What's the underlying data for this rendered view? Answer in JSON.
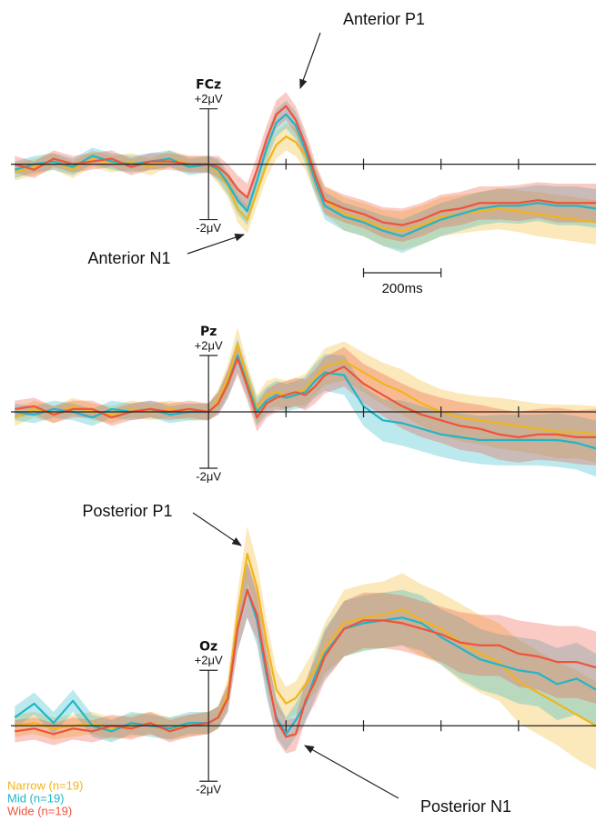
{
  "chart_data": [
    {
      "type": "line",
      "title": "FCz",
      "x": [
        -500,
        -450,
        -400,
        -350,
        -300,
        -250,
        -200,
        -150,
        -100,
        -50,
        0,
        25,
        50,
        75,
        100,
        125,
        150,
        175,
        200,
        225,
        250,
        275,
        300,
        350,
        400,
        450,
        500,
        550,
        600,
        650,
        700,
        750,
        800,
        850,
        900,
        950,
        1000
      ],
      "xlim": [
        -510,
        1000
      ],
      "xticks": [
        200,
        400,
        600,
        800
      ],
      "ylim": [
        -3,
        3.5
      ],
      "yticks": [
        {
          "value": 2,
          "label": "+2μV"
        },
        {
          "value": -2,
          "label": "-2μV"
        }
      ],
      "annotations": [
        "Anterior P1",
        "Anterior N1"
      ],
      "scale_bar": {
        "value": 200,
        "label": "200ms"
      },
      "series": [
        {
          "color": "#f2b41e",
          "values": [
            -0.3,
            -0.1,
            0.1,
            -0.2,
            0.2,
            0.0,
            0.1,
            -0.1,
            0.2,
            0.0,
            0.0,
            -0.3,
            -0.8,
            -1.6,
            -2.0,
            -1.0,
            0.0,
            0.7,
            1.0,
            0.8,
            0.3,
            -0.6,
            -1.3,
            -1.8,
            -2.0,
            -2.3,
            -2.4,
            -2.2,
            -1.9,
            -1.8,
            -1.7,
            -1.6,
            -1.7,
            -1.8,
            -1.9,
            -2.0,
            -2.1
          ],
          "errors": [
            0.3,
            0.3,
            0.3,
            0.3,
            0.3,
            0.3,
            0.3,
            0.3,
            0.3,
            0.3,
            0.3,
            0.4,
            0.4,
            0.5,
            0.5,
            0.5,
            0.5,
            0.5,
            0.5,
            0.5,
            0.5,
            0.5,
            0.5,
            0.6,
            0.6,
            0.65,
            0.7,
            0.7,
            0.7,
            0.7,
            0.7,
            0.75,
            0.75,
            0.8,
            0.8,
            0.8,
            0.8
          ]
        },
        {
          "color": "#22b5c8",
          "values": [
            -0.2,
            0.0,
            0.1,
            -0.1,
            0.3,
            0.1,
            0.0,
            0.1,
            0.2,
            -0.1,
            0.0,
            -0.2,
            -0.7,
            -1.3,
            -1.7,
            -0.6,
            0.6,
            1.5,
            1.8,
            1.4,
            0.5,
            -0.6,
            -1.5,
            -1.9,
            -2.1,
            -2.4,
            -2.6,
            -2.3,
            -2.0,
            -1.8,
            -1.6,
            -1.5,
            -1.5,
            -1.4,
            -1.5,
            -1.5,
            -1.6
          ],
          "errors": [
            0.3,
            0.3,
            0.3,
            0.3,
            0.3,
            0.3,
            0.3,
            0.3,
            0.3,
            0.3,
            0.3,
            0.4,
            0.4,
            0.5,
            0.5,
            0.5,
            0.5,
            0.5,
            0.5,
            0.5,
            0.5,
            0.5,
            0.5,
            0.5,
            0.5,
            0.55,
            0.6,
            0.6,
            0.6,
            0.6,
            0.6,
            0.6,
            0.65,
            0.65,
            0.7,
            0.7,
            0.7
          ]
        },
        {
          "color": "#f0533a",
          "values": [
            0.0,
            -0.2,
            0.2,
            0.0,
            0.1,
            0.2,
            -0.1,
            0.1,
            0.1,
            0.0,
            0.0,
            -0.1,
            -0.4,
            -0.9,
            -1.2,
            -0.2,
            0.9,
            1.8,
            2.1,
            1.6,
            0.7,
            -0.4,
            -1.3,
            -1.6,
            -1.8,
            -2.1,
            -2.2,
            -2.0,
            -1.7,
            -1.6,
            -1.4,
            -1.4,
            -1.4,
            -1.3,
            -1.4,
            -1.4,
            -1.4
          ],
          "errors": [
            0.3,
            0.3,
            0.3,
            0.3,
            0.3,
            0.3,
            0.3,
            0.3,
            0.3,
            0.3,
            0.3,
            0.4,
            0.4,
            0.5,
            0.5,
            0.5,
            0.5,
            0.5,
            0.5,
            0.5,
            0.5,
            0.5,
            0.5,
            0.5,
            0.5,
            0.55,
            0.6,
            0.6,
            0.6,
            0.6,
            0.6,
            0.6,
            0.65,
            0.65,
            0.7,
            0.7,
            0.7
          ]
        }
      ]
    },
    {
      "type": "line",
      "title": "Pz",
      "x": [
        -500,
        -450,
        -400,
        -350,
        -300,
        -250,
        -200,
        -150,
        -100,
        -50,
        0,
        25,
        50,
        75,
        100,
        125,
        150,
        175,
        200,
        225,
        250,
        275,
        300,
        350,
        400,
        450,
        500,
        550,
        600,
        650,
        700,
        750,
        800,
        850,
        900,
        950,
        1000
      ],
      "xlim": [
        -510,
        1000
      ],
      "xticks": [
        200,
        400,
        600,
        800
      ],
      "ylim": [
        -3,
        3
      ],
      "yticks": [
        {
          "value": 2,
          "label": "+2μV"
        },
        {
          "value": -2,
          "label": "-2μV"
        }
      ],
      "series": [
        {
          "color": "#f2b41e",
          "values": [
            -0.2,
            0.1,
            -0.1,
            0.2,
            0.0,
            -0.1,
            0.1,
            0.0,
            0.1,
            0.0,
            0.0,
            0.4,
            1.2,
            2.4,
            1.2,
            0.1,
            0.6,
            0.7,
            0.6,
            0.7,
            0.8,
            1.2,
            1.6,
            1.8,
            1.4,
            1.0,
            0.7,
            0.3,
            0.0,
            -0.2,
            -0.3,
            -0.4,
            -0.5,
            -0.6,
            -0.7,
            -0.7,
            -0.8
          ],
          "errors": [
            0.3,
            0.3,
            0.3,
            0.3,
            0.3,
            0.3,
            0.3,
            0.3,
            0.3,
            0.3,
            0.3,
            0.4,
            0.5,
            0.6,
            0.5,
            0.5,
            0.5,
            0.5,
            0.5,
            0.5,
            0.55,
            0.6,
            0.65,
            0.7,
            0.7,
            0.75,
            0.8,
            0.8,
            0.8,
            0.85,
            0.85,
            0.9,
            0.9,
            0.9,
            0.95,
            0.95,
            1.0
          ]
        },
        {
          "color": "#22b5c8",
          "values": [
            0.0,
            -0.1,
            0.1,
            0.0,
            -0.2,
            0.1,
            0.0,
            0.1,
            -0.1,
            0.0,
            0.0,
            0.3,
            1.0,
            2.0,
            1.0,
            0.0,
            0.4,
            0.6,
            0.5,
            0.6,
            0.7,
            1.1,
            1.4,
            1.3,
            0.2,
            -0.3,
            -0.4,
            -0.6,
            -0.8,
            -0.9,
            -1.0,
            -1.0,
            -1.0,
            -1.0,
            -1.0,
            -1.1,
            -1.3
          ],
          "errors": [
            0.3,
            0.3,
            0.3,
            0.3,
            0.3,
            0.3,
            0.3,
            0.3,
            0.3,
            0.3,
            0.3,
            0.4,
            0.5,
            0.6,
            0.5,
            0.5,
            0.5,
            0.5,
            0.5,
            0.5,
            0.55,
            0.6,
            0.65,
            0.7,
            0.7,
            0.75,
            0.8,
            0.8,
            0.8,
            0.85,
            0.85,
            0.9,
            0.9,
            0.9,
            0.95,
            0.95,
            1.0
          ]
        },
        {
          "color": "#f0533a",
          "values": [
            0.1,
            0.2,
            -0.1,
            0.1,
            0.1,
            -0.2,
            0.0,
            0.1,
            0.0,
            0.1,
            0.0,
            0.3,
            1.0,
            1.9,
            0.9,
            -0.2,
            0.3,
            0.5,
            0.6,
            0.7,
            0.6,
            0.9,
            1.3,
            1.6,
            1.0,
            0.6,
            0.2,
            -0.1,
            -0.3,
            -0.5,
            -0.6,
            -0.8,
            -0.9,
            -0.8,
            -0.8,
            -0.9,
            -0.9
          ],
          "errors": [
            0.3,
            0.3,
            0.3,
            0.3,
            0.3,
            0.3,
            0.3,
            0.3,
            0.3,
            0.3,
            0.3,
            0.4,
            0.5,
            0.6,
            0.5,
            0.5,
            0.5,
            0.5,
            0.5,
            0.5,
            0.55,
            0.6,
            0.65,
            0.7,
            0.7,
            0.75,
            0.8,
            0.8,
            0.8,
            0.85,
            0.85,
            0.9,
            0.9,
            0.9,
            0.95,
            0.95,
            1.0
          ]
        }
      ]
    },
    {
      "type": "line",
      "title": "Oz",
      "x": [
        -500,
        -450,
        -400,
        -350,
        -300,
        -250,
        -200,
        -150,
        -100,
        -50,
        0,
        25,
        50,
        75,
        100,
        125,
        150,
        175,
        200,
        225,
        250,
        275,
        300,
        350,
        400,
        450,
        500,
        550,
        600,
        650,
        700,
        750,
        800,
        850,
        900,
        950,
        1000
      ],
      "xlim": [
        -510,
        1000
      ],
      "xticks": [
        200,
        400,
        600,
        800
      ],
      "ylim": [
        -3,
        6.5
      ],
      "yticks": [
        {
          "value": 2,
          "label": "+2μV"
        },
        {
          "value": -2,
          "label": "-2μV"
        }
      ],
      "annotations": [
        "Posterior P1",
        "Posterior N1"
      ],
      "legend": "bottom-left",
      "series": [
        {
          "name": "Narrow (n=19)",
          "color": "#f2b41e",
          "values": [
            0.0,
            0.1,
            -0.1,
            0.0,
            0.1,
            -0.1,
            0.0,
            0.1,
            -0.1,
            0.0,
            0.1,
            0.3,
            1.2,
            4.0,
            6.2,
            5.0,
            3.0,
            1.3,
            0.8,
            1.0,
            1.5,
            2.0,
            2.8,
            3.7,
            3.9,
            4.0,
            4.2,
            3.8,
            3.5,
            3.0,
            2.6,
            2.3,
            1.6,
            1.2,
            0.8,
            0.4,
            0.0
          ],
          "errors": [
            0.4,
            0.4,
            0.4,
            0.4,
            0.4,
            0.4,
            0.4,
            0.4,
            0.4,
            0.4,
            0.4,
            0.4,
            0.5,
            0.8,
            1.0,
            0.9,
            0.8,
            0.7,
            0.6,
            0.6,
            0.7,
            0.8,
            0.9,
            1.2,
            1.2,
            1.2,
            1.3,
            1.3,
            1.3,
            1.4,
            1.4,
            1.4,
            1.5,
            1.5,
            1.5,
            1.6,
            1.6
          ]
        },
        {
          "name": "Mid (n=19)",
          "color": "#22b5c8",
          "values": [
            0.3,
            0.8,
            0.1,
            0.9,
            0.0,
            -0.2,
            0.1,
            0.0,
            -0.1,
            0.1,
            0.1,
            0.3,
            1.0,
            3.5,
            4.9,
            3.8,
            1.8,
            0.3,
            -0.3,
            0.2,
            0.8,
            1.8,
            2.6,
            3.5,
            3.7,
            3.8,
            3.9,
            3.7,
            3.2,
            2.8,
            2.4,
            2.2,
            2.0,
            1.9,
            1.5,
            1.7,
            1.3
          ],
          "errors": [
            0.4,
            0.4,
            0.4,
            0.4,
            0.4,
            0.4,
            0.4,
            0.4,
            0.4,
            0.4,
            0.4,
            0.4,
            0.5,
            0.8,
            1.0,
            0.9,
            0.8,
            0.7,
            0.6,
            0.6,
            0.7,
            0.8,
            0.9,
            1.0,
            1.0,
            1.0,
            1.0,
            1.0,
            1.0,
            1.1,
            1.1,
            1.1,
            1.2,
            1.2,
            1.3,
            1.3,
            1.3
          ]
        },
        {
          "name": "Wide (n=19)",
          "color": "#f0533a",
          "values": [
            -0.2,
            -0.1,
            -0.3,
            -0.1,
            -0.2,
            0.0,
            -0.1,
            0.1,
            -0.2,
            0.0,
            0.1,
            0.3,
            1.0,
            3.5,
            4.9,
            4.0,
            2.0,
            0.2,
            -0.4,
            -0.3,
            0.9,
            1.6,
            2.5,
            3.5,
            3.8,
            3.8,
            3.7,
            3.5,
            3.3,
            3.0,
            2.9,
            2.9,
            2.6,
            2.5,
            2.3,
            2.3,
            2.1
          ],
          "errors": [
            0.4,
            0.4,
            0.4,
            0.4,
            0.4,
            0.4,
            0.4,
            0.4,
            0.4,
            0.4,
            0.4,
            0.4,
            0.5,
            0.8,
            1.0,
            0.9,
            0.8,
            0.7,
            0.6,
            0.6,
            0.7,
            0.8,
            0.9,
            1.0,
            1.0,
            1.0,
            1.0,
            1.0,
            1.0,
            1.1,
            1.1,
            1.1,
            1.2,
            1.2,
            1.3,
            1.3,
            1.3
          ]
        }
      ]
    }
  ]
}
